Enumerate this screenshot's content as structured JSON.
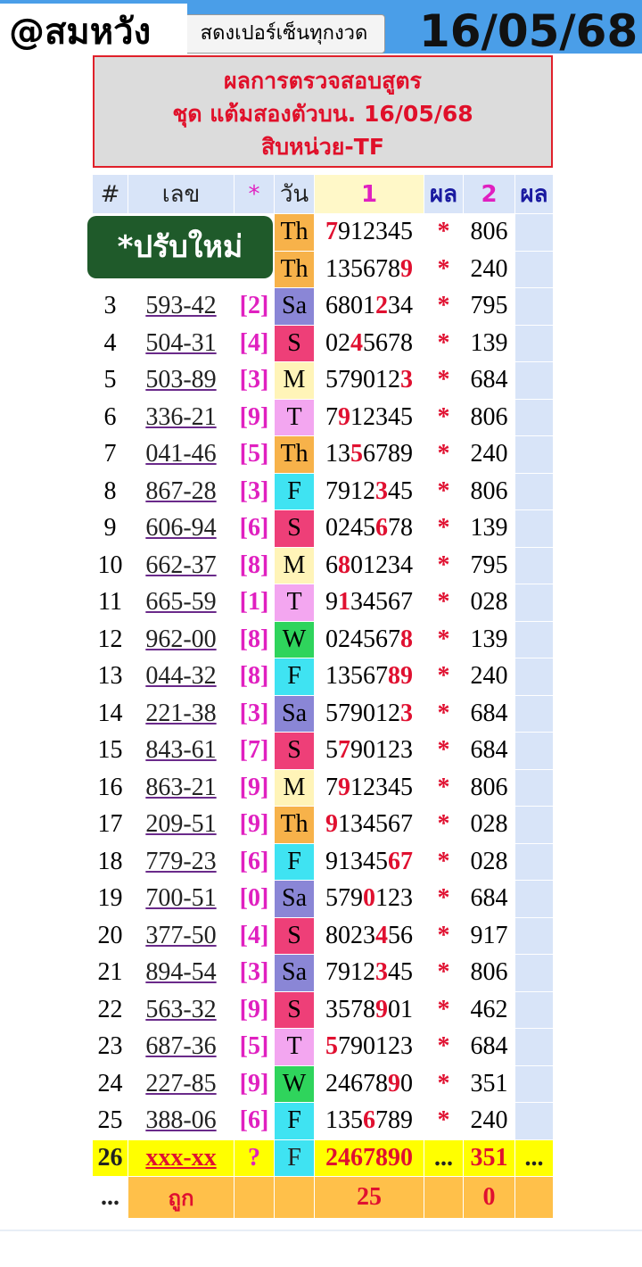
{
  "header": {
    "handle": "@สมหวัง",
    "button": "สดงเปอร์เซ็นทุกงวด",
    "date": "16/05/68"
  },
  "title": {
    "lines": [
      "ผลการตรวจสอบสูตร",
      "ชุด แต้มสองตัวบน. 16/05/68",
      "สิบหน่วย-TF"
    ]
  },
  "badge": "*ปรับใหม่",
  "table": {
    "columns": [
      "#",
      "เลข",
      "*",
      "วัน",
      "1",
      "ผล",
      "2",
      "ผล"
    ],
    "day_colors": {
      "Th": "#f7b24a",
      "Sa": "#8a86d6",
      "S": "#ee3f78",
      "M": "#fff4b8",
      "T": "#f3a6f0",
      "F": "#3fe3f2",
      "W": "#2fd45c"
    },
    "rows": [
      {
        "n": null,
        "number": null,
        "bracket": null,
        "day": "Th",
        "seq": "7912345",
        "hl": [
          0
        ],
        "star": "*",
        "r2": "806"
      },
      {
        "n": null,
        "number": null,
        "bracket": null,
        "day": "Th",
        "seq": "1356789",
        "hl": [
          6
        ],
        "star": "*",
        "r2": "240"
      },
      {
        "n": "3",
        "number": "593-42",
        "bracket": "[2]",
        "day": "Sa",
        "seq": "6801234",
        "hl": [
          4
        ],
        "star": "*",
        "r2": "795"
      },
      {
        "n": "4",
        "number": "504-31",
        "bracket": "[4]",
        "day": "S",
        "seq": "0245678",
        "hl": [
          2
        ],
        "star": "*",
        "r2": "139"
      },
      {
        "n": "5",
        "number": "503-89",
        "bracket": "[3]",
        "day": "M",
        "seq": "5790123",
        "hl": [
          6
        ],
        "star": "*",
        "r2": "684"
      },
      {
        "n": "6",
        "number": "336-21",
        "bracket": "[9]",
        "day": "T",
        "seq": "7912345",
        "hl": [
          1
        ],
        "star": "*",
        "r2": "806"
      },
      {
        "n": "7",
        "number": "041-46",
        "bracket": "[5]",
        "day": "Th",
        "seq": "1356789",
        "hl": [
          2
        ],
        "star": "*",
        "r2": "240"
      },
      {
        "n": "8",
        "number": "867-28",
        "bracket": "[3]",
        "day": "F",
        "seq": "7912345",
        "hl": [
          4
        ],
        "star": "*",
        "r2": "806"
      },
      {
        "n": "9",
        "number": "606-94",
        "bracket": "[6]",
        "day": "S",
        "seq": "0245678",
        "hl": [
          4
        ],
        "star": "*",
        "r2": "139"
      },
      {
        "n": "10",
        "number": "662-37",
        "bracket": "[8]",
        "day": "M",
        "seq": "6801234",
        "hl": [
          1
        ],
        "star": "*",
        "r2": "795"
      },
      {
        "n": "11",
        "number": "665-59",
        "bracket": "[1]",
        "day": "T",
        "seq": "9134567",
        "hl": [
          1
        ],
        "star": "*",
        "r2": "028"
      },
      {
        "n": "12",
        "number": "962-00",
        "bracket": "[8]",
        "day": "W",
        "seq": "0245678",
        "hl": [
          6
        ],
        "star": "*",
        "r2": "139"
      },
      {
        "n": "13",
        "number": "044-32",
        "bracket": "[8]",
        "day": "F",
        "seq": "1356789",
        "hl": [
          5,
          6
        ],
        "star": "*",
        "r2": "240"
      },
      {
        "n": "14",
        "number": "221-38",
        "bracket": "[3]",
        "day": "Sa",
        "seq": "5790123",
        "hl": [
          6
        ],
        "star": "*",
        "r2": "684"
      },
      {
        "n": "15",
        "number": "843-61",
        "bracket": "[7]",
        "day": "S",
        "seq": "5790123",
        "hl": [
          1
        ],
        "star": "*",
        "r2": "684"
      },
      {
        "n": "16",
        "number": "863-21",
        "bracket": "[9]",
        "day": "M",
        "seq": "7912345",
        "hl": [
          1
        ],
        "star": "*",
        "r2": "806"
      },
      {
        "n": "17",
        "number": "209-51",
        "bracket": "[9]",
        "day": "Th",
        "seq": "9134567",
        "hl": [
          0
        ],
        "star": "*",
        "r2": "028"
      },
      {
        "n": "18",
        "number": "779-23",
        "bracket": "[6]",
        "day": "F",
        "seq": "9134567",
        "hl": [
          5,
          6
        ],
        "star": "*",
        "r2": "028"
      },
      {
        "n": "19",
        "number": "700-51",
        "bracket": "[0]",
        "day": "Sa",
        "seq": "5790123",
        "hl": [
          3
        ],
        "star": "*",
        "r2": "684"
      },
      {
        "n": "20",
        "number": "377-50",
        "bracket": "[4]",
        "day": "S",
        "seq": "8023456",
        "hl": [
          4
        ],
        "star": "*",
        "r2": "917"
      },
      {
        "n": "21",
        "number": "894-54",
        "bracket": "[3]",
        "day": "Sa",
        "seq": "7912345",
        "hl": [
          4
        ],
        "star": "*",
        "r2": "806"
      },
      {
        "n": "22",
        "number": "563-32",
        "bracket": "[9]",
        "day": "S",
        "seq": "3578901",
        "hl": [
          4
        ],
        "star": "*",
        "r2": "462"
      },
      {
        "n": "23",
        "number": "687-36",
        "bracket": "[5]",
        "day": "T",
        "seq": "5790123",
        "hl": [
          0
        ],
        "star": "*",
        "r2": "684"
      },
      {
        "n": "24",
        "number": "227-85",
        "bracket": "[9]",
        "day": "W",
        "seq": "2467890",
        "hl": [
          5
        ],
        "star": "*",
        "r2": "351"
      },
      {
        "n": "25",
        "number": "388-06",
        "bracket": "[6]",
        "day": "F",
        "seq": "1356789",
        "hl": [
          3
        ],
        "star": "*",
        "r2": "240"
      }
    ],
    "pending": [
      "26",
      "xxx-xx",
      "?",
      "F",
      "2467890",
      "...",
      "351",
      "..."
    ],
    "footer": {
      "first": "...",
      "label": "ถูก",
      "hits1": "25",
      "hits2": "0"
    }
  }
}
